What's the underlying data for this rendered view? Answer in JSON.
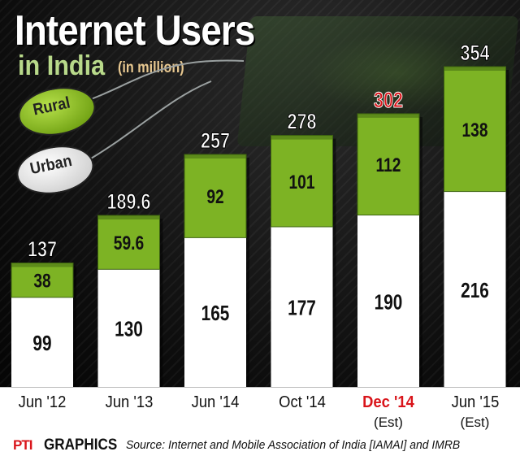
{
  "header": {
    "title": "Internet Users",
    "subtitle": "in India",
    "unit": "(in million)"
  },
  "legend": {
    "rural_label": "Rural",
    "urban_label": "Urban"
  },
  "chart_data": {
    "type": "bar",
    "stacked": true,
    "title": "Internet Users in India (in million)",
    "categories": [
      "Jun '12",
      "Jun '13",
      "Jun '14",
      "Oct '14",
      "Dec '14",
      "Jun '15"
    ],
    "category_notes": [
      "",
      "",
      "",
      "",
      "(Est)",
      "(Est)"
    ],
    "highlight_category": "Dec '14",
    "series": [
      {
        "name": "Urban",
        "values": [
          "99",
          "130",
          "165",
          "177",
          "190",
          "216"
        ]
      },
      {
        "name": "Rural",
        "values": [
          "38",
          "59.6",
          "92",
          "101",
          "112",
          "138"
        ]
      }
    ],
    "totals": [
      "137",
      "189.6",
      "257",
      "278",
      "302",
      "354"
    ],
    "ylim": [
      0,
      354
    ],
    "colors": {
      "urban": "#ffffff",
      "rural": "#7db324",
      "rural_dark": "#3d6310",
      "highlight": "#d9151b",
      "total_label": "#ffffff"
    }
  },
  "footer": {
    "agency": "PTI",
    "graphics": "GRAPHICS",
    "source": "Source: Internet and Mobile Association of India [IAMAI] and IMRB"
  }
}
